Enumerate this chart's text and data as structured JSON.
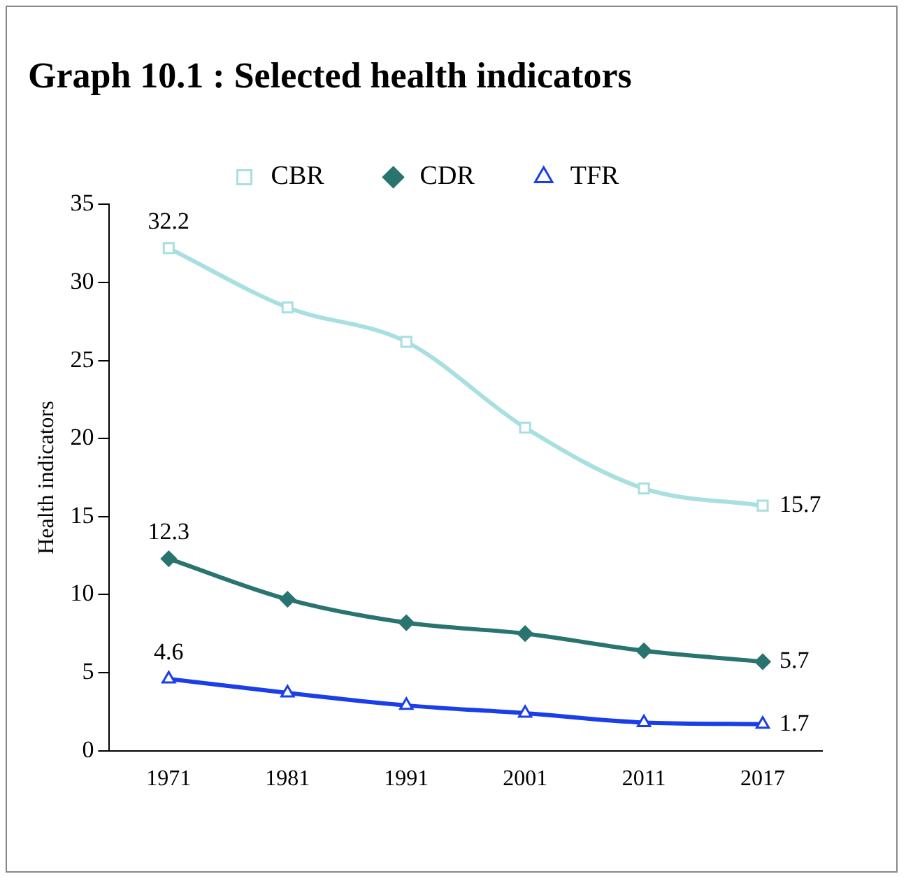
{
  "chart_data": {
    "type": "line",
    "title": "Graph 10.1 : Selected health indicators",
    "ylabel": "Health indicators",
    "categories": [
      "1971",
      "1981",
      "1991",
      "2001",
      "2011",
      "2017"
    ],
    "series": [
      {
        "name": "CBR",
        "color": "#a8dfe0",
        "marker": "square",
        "values": [
          32.2,
          28.4,
          26.2,
          20.7,
          16.8,
          15.7
        ],
        "value_labels": [
          "32.2",
          null,
          null,
          null,
          null,
          "15.7"
        ]
      },
      {
        "name": "CDR",
        "color": "#2a7470",
        "marker": "diamond",
        "values": [
          12.3,
          9.7,
          8.2,
          7.5,
          6.4,
          5.7
        ],
        "value_labels": [
          "12.3",
          null,
          null,
          null,
          null,
          "5.7"
        ]
      },
      {
        "name": "TFR",
        "color": "#1a3ee8",
        "marker": "triangle",
        "values": [
          4.6,
          3.7,
          2.9,
          2.4,
          1.8,
          1.7
        ],
        "value_labels": [
          "4.6",
          null,
          null,
          null,
          null,
          "1.7"
        ]
      }
    ],
    "ylim": [
      0,
      35
    ],
    "yticks": [
      0,
      5,
      10,
      15,
      20,
      25,
      30,
      35
    ],
    "grid": false,
    "legend": "top"
  }
}
